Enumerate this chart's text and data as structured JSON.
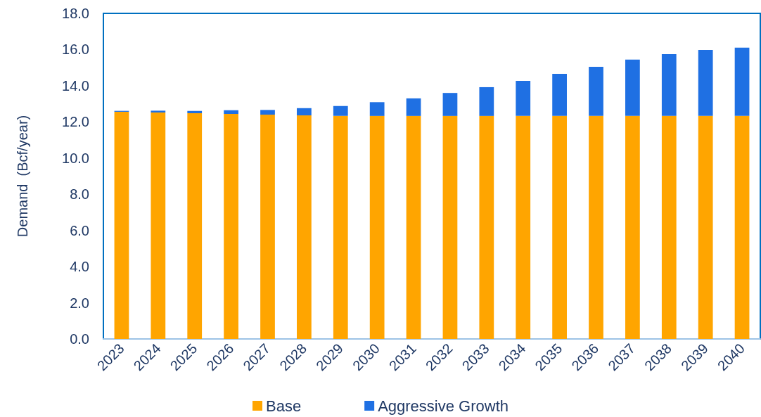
{
  "chart_data": {
    "type": "bar",
    "stacked": true,
    "ylabel": "Demand  (Bcf/year)",
    "categories": [
      "2023",
      "2024",
      "2025",
      "2026",
      "2027",
      "2028",
      "2029",
      "2030",
      "2031",
      "2032",
      "2033",
      "2034",
      "2035",
      "2036",
      "2037",
      "2038",
      "2039",
      "2040"
    ],
    "series": [
      {
        "name": "Base",
        "color": "#ffa500",
        "values": [
          12.56,
          12.52,
          12.48,
          12.44,
          12.4,
          12.36,
          12.33,
          12.33,
          12.33,
          12.33,
          12.33,
          12.33,
          12.33,
          12.33,
          12.33,
          12.33,
          12.33,
          12.33
        ]
      },
      {
        "name": "Aggressive Growth",
        "color": "#1f70e3",
        "values": [
          0.05,
          0.1,
          0.13,
          0.2,
          0.26,
          0.4,
          0.55,
          0.76,
          0.97,
          1.27,
          1.59,
          1.94,
          2.33,
          2.72,
          3.11,
          3.42,
          3.65,
          3.77
        ]
      }
    ],
    "ylim": [
      0,
      18
    ],
    "yticks": [
      {
        "value": 0,
        "label": "0.0"
      },
      {
        "value": 2,
        "label": "2.0"
      },
      {
        "value": 4,
        "label": "4.0"
      },
      {
        "value": 6,
        "label": "6.0"
      },
      {
        "value": 8,
        "label": "8.0"
      },
      {
        "value": 10,
        "label": "10.0"
      },
      {
        "value": 12,
        "label": "12.0"
      },
      {
        "value": 14,
        "label": "14.0"
      },
      {
        "value": 16,
        "label": "16.0"
      },
      {
        "value": 18,
        "label": "18.0"
      }
    ],
    "grid": false,
    "legend": "bottom"
  }
}
